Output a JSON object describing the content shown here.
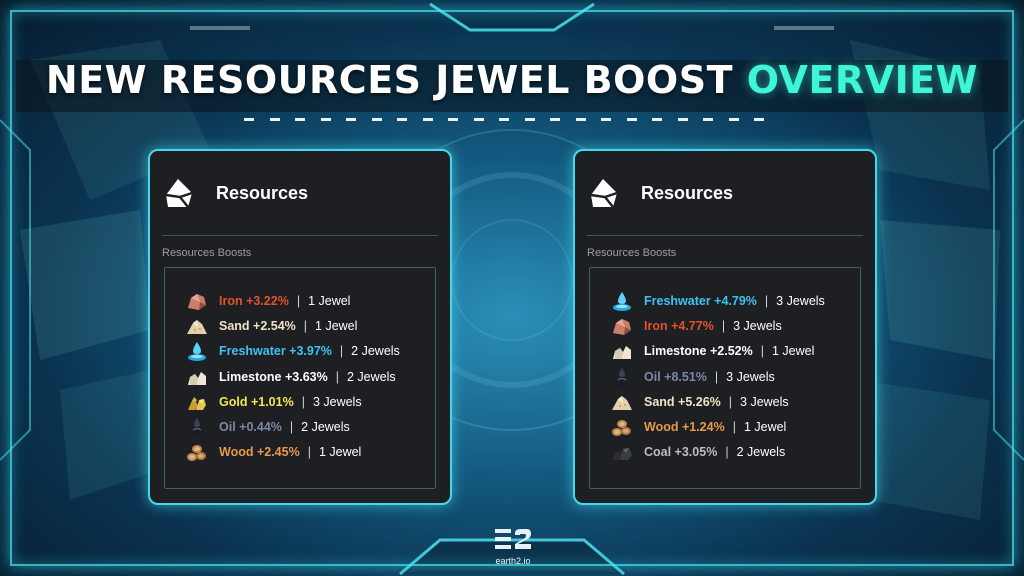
{
  "title": {
    "part1": "NEW RESOURCES JEWEL BOOST",
    "part2": "OVERVIEW"
  },
  "panels": [
    {
      "title": "Resources",
      "subtitle": "Resources Boosts",
      "rows": [
        {
          "name": "Iron +3.22%",
          "jewels": "1 Jewel",
          "color": "#e0532e",
          "icon": "iron-icon"
        },
        {
          "name": "Sand +2.54%",
          "jewels": "1 Jewel",
          "color": "#f1e3c8",
          "icon": "sand-icon"
        },
        {
          "name": "Freshwater +3.97%",
          "jewels": "2 Jewels",
          "color": "#3fc2f2",
          "icon": "freshwater-icon"
        },
        {
          "name": "Limestone +3.63%",
          "jewels": "2 Jewels",
          "color": "#ffffff",
          "icon": "limestone-icon"
        },
        {
          "name": "Gold +1.01%",
          "jewels": "3 Jewels",
          "color": "#f3ea4a",
          "icon": "gold-icon"
        },
        {
          "name": "Oil +0.44%",
          "jewels": "2 Jewels",
          "color": "#7a8aa6",
          "icon": "oil-icon"
        },
        {
          "name": "Wood +2.45%",
          "jewels": "1 Jewel",
          "color": "#e59a4b",
          "icon": "wood-icon"
        }
      ]
    },
    {
      "title": "Resources",
      "subtitle": "Resources Boosts",
      "rows": [
        {
          "name": "Freshwater +4.79%",
          "jewels": "3 Jewels",
          "color": "#3fc2f2",
          "icon": "freshwater-icon"
        },
        {
          "name": "Iron +4.77%",
          "jewels": "3 Jewels",
          "color": "#e0532e",
          "icon": "iron-icon"
        },
        {
          "name": "Limestone +2.52%",
          "jewels": "1 Jewel",
          "color": "#ffffff",
          "icon": "limestone-icon"
        },
        {
          "name": "Oil +8.51%",
          "jewels": "3 Jewels",
          "color": "#7a8aa6",
          "icon": "oil-icon"
        },
        {
          "name": "Sand +5.26%",
          "jewels": "3 Jewels",
          "color": "#f1e3c8",
          "icon": "sand-icon"
        },
        {
          "name": "Wood +1.24%",
          "jewels": "1 Jewel",
          "color": "#e59a4b",
          "icon": "wood-icon"
        },
        {
          "name": "Coal +3.05%",
          "jewels": "2 Jewels",
          "color": "#b9bec6",
          "icon": "coal-icon"
        }
      ]
    }
  ],
  "separator": "|",
  "logo": {
    "text": "earth2.io",
    "icon": "earth2-logo-icon"
  }
}
